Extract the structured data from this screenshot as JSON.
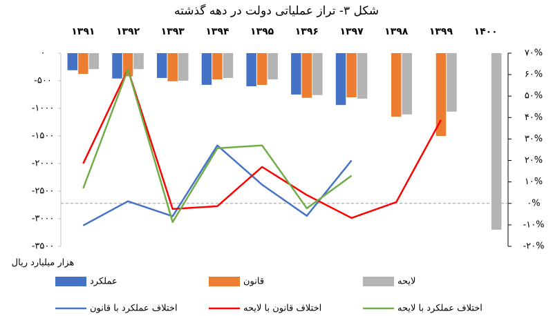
{
  "chart_data": {
    "type": "combo",
    "title": "شکل ۳- تراز عملیاتی دولت در دهه گذشته",
    "y_label": "هزار میلیارد ریال",
    "categories": [
      "۱۳۹۱",
      "۱۳۹۲",
      "۱۳۹۳",
      "۱۳۹۴",
      "۱۳۹۵",
      "۱۳۹۶",
      "۱۳۹۷",
      "۱۳۹۸",
      "۱۳۹۹",
      "۱۴۰۰"
    ],
    "ylim": [
      -3500,
      0
    ],
    "yticks": [
      {
        "value": 0,
        "label": "۰"
      },
      {
        "value": -500,
        "label": "-۵۰۰"
      },
      {
        "value": -1000,
        "label": "-۱۰۰۰"
      },
      {
        "value": -1500,
        "label": "-۱۵۰۰"
      },
      {
        "value": -2000,
        "label": "-۲۰۰۰"
      },
      {
        "value": -2500,
        "label": "-۲۵۰۰"
      },
      {
        "value": -3000,
        "label": "-۳۰۰۰"
      },
      {
        "value": -3500,
        "label": "-۳۵۰۰"
      }
    ],
    "y2lim": [
      -20,
      70
    ],
    "y2ticks": [
      {
        "value": 70,
        "label": "۷۰%"
      },
      {
        "value": 60,
        "label": "۶۰%"
      },
      {
        "value": 50,
        "label": "۵۰%"
      },
      {
        "value": 40,
        "label": "۴۰%"
      },
      {
        "value": 30,
        "label": "۳۰%"
      },
      {
        "value": 20,
        "label": "۲۰%"
      },
      {
        "value": 10,
        "label": "۱۰%"
      },
      {
        "value": 0,
        "label": "۰%"
      },
      {
        "value": -10,
        "label": "-۱۰%"
      },
      {
        "value": -20,
        "label": "-۲۰%"
      }
    ],
    "grid": false,
    "zero_line": true,
    "series": [
      {
        "name": "عملکرد",
        "type": "bar",
        "color": "#4472c4",
        "values": [
          -310,
          -460,
          -450,
          -575,
          -600,
          -750,
          -940,
          null,
          null,
          null
        ]
      },
      {
        "name": "قانون",
        "type": "bar",
        "color": "#ed7d31",
        "values": [
          -375,
          -420,
          -510,
          -475,
          -575,
          -810,
          -800,
          -1150,
          -1500,
          null
        ]
      },
      {
        "name": "لایحه",
        "type": "bar",
        "color": "#b4b4b4",
        "values": [
          -290,
          -290,
          -500,
          -450,
          -475,
          -760,
          -825,
          -1110,
          -1060,
          -3200
        ]
      },
      {
        "name": "اختلاف عملکرد با قانون",
        "type": "line",
        "axis": "y2",
        "color": "#4472c4",
        "values": [
          -10.3,
          1,
          -6,
          27,
          8.7,
          -5.8,
          20,
          null,
          null,
          null
        ]
      },
      {
        "name": "اختلاف قانون با لایحه",
        "type": "line",
        "axis": "y2",
        "color": "#ff0000",
        "values": [
          18.6,
          62.4,
          -2.6,
          -1.3,
          17,
          3.9,
          -6.8,
          0.6,
          38.9,
          null
        ]
      },
      {
        "name": "اختلاف عملکرد با لایحه",
        "type": "line",
        "axis": "y2",
        "color": "#70ad47",
        "values": [
          7,
          62.4,
          -8.7,
          25.7,
          27,
          -2.3,
          12.9,
          null,
          null,
          null
        ]
      }
    ]
  }
}
